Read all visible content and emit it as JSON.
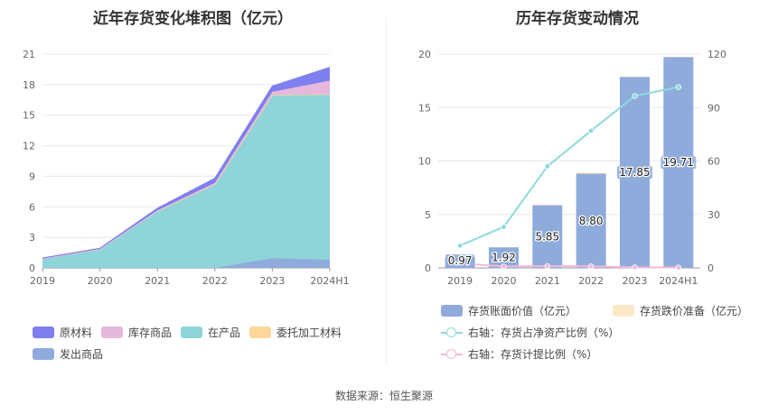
{
  "chart_data": [
    {
      "type": "area",
      "title": "近年存货变化堆积图（亿元）",
      "categories": [
        "2019",
        "2020",
        "2021",
        "2022",
        "2023",
        "2024H1"
      ],
      "ylim": [
        0,
        21
      ],
      "yticks": [
        0,
        3,
        6,
        9,
        12,
        15,
        18,
        21
      ],
      "series": [
        {
          "name": "发出商品",
          "color": "#8fabdc",
          "values": [
            0,
            0,
            0,
            0,
            0.95,
            0.8
          ]
        },
        {
          "name": "在产品",
          "color": "#8ed4d8",
          "values": [
            0.9,
            1.85,
            5.6,
            8.2,
            16.0,
            16.2
          ]
        },
        {
          "name": "委托加工材料",
          "color": "#fdd79a",
          "values": [
            0,
            0,
            0,
            0,
            0.05,
            0.05
          ]
        },
        {
          "name": "库存商品",
          "color": "#e6b8dc",
          "values": [
            0.02,
            0.02,
            0.05,
            0.15,
            0.3,
            1.35
          ]
        },
        {
          "name": "原材料",
          "color": "#7f7ff0",
          "values": [
            0.05,
            0.05,
            0.2,
            0.45,
            0.55,
            1.3
          ]
        }
      ],
      "legend_order": [
        "原材料",
        "库存商品",
        "在产品",
        "委托加工材料",
        "发出商品"
      ]
    },
    {
      "type": "bar",
      "title": "历年存货变动情况",
      "categories": [
        "2019",
        "2020",
        "2021",
        "2022",
        "2023",
        "2024H1"
      ],
      "ylim_left": [
        0,
        20
      ],
      "yticks_left": [
        0,
        5,
        10,
        15,
        20
      ],
      "ylim_right": [
        0,
        120
      ],
      "yticks_right": [
        0,
        30,
        60,
        90,
        120
      ],
      "series": [
        {
          "name": "存货账面价值（亿元）",
          "axis": "left",
          "kind": "bar",
          "color": "#8fabdc",
          "values": [
            0.97,
            1.92,
            5.85,
            8.8,
            17.85,
            19.71
          ],
          "labels": [
            "0.97",
            "1.92",
            "5.85",
            "8.80",
            "17.85",
            "19.71"
          ]
        },
        {
          "name": "存货跌价准备（亿元）",
          "axis": "left",
          "kind": "bar",
          "color": "#fde8c8",
          "values": [
            0,
            0,
            0.05,
            0.08,
            0.03,
            0.03
          ]
        },
        {
          "name": "右轴：存货占净资产比例（%）",
          "axis": "right",
          "kind": "line",
          "color": "#8dd9dc",
          "values": [
            12.5,
            23,
            57,
            77,
            96.5,
            101.5
          ]
        },
        {
          "name": "右轴：存货计提比例（%）",
          "axis": "right",
          "kind": "line",
          "color": "#f0b8d8",
          "values": [
            2.5,
            0.8,
            1.0,
            0.9,
            0.3,
            0.2
          ]
        }
      ]
    }
  ],
  "source": "数据来源：恒生聚源"
}
